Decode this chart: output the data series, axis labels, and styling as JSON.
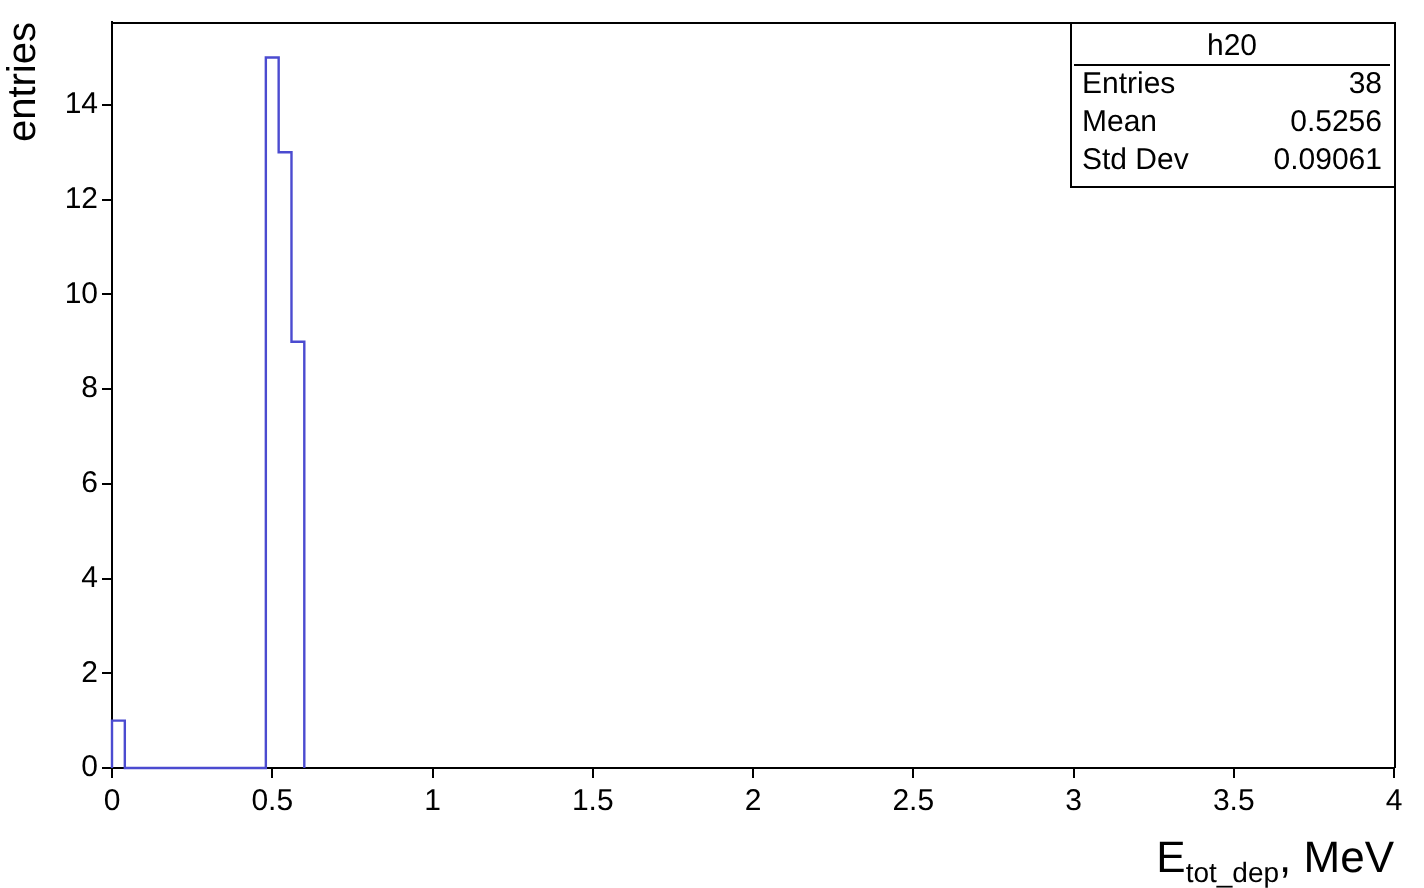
{
  "chart_data": {
    "type": "histogram",
    "xlabel": "E$_{tot_dep}$, MeV",
    "ylabel": "entries",
    "bins": [
      0,
      0.04,
      0.08,
      0.12,
      0.16,
      0.2,
      0.24,
      0.28,
      0.32,
      0.36,
      0.4,
      0.44,
      0.48,
      0.52,
      0.56,
      0.6
    ],
    "values": [
      1,
      0,
      0,
      0,
      0,
      0,
      0,
      0,
      0,
      0,
      0,
      0,
      15,
      13,
      9
    ],
    "color": "#4b4bd0",
    "xlim": [
      0,
      4
    ],
    "xticks": [
      0,
      0.5,
      1,
      1.5,
      2,
      2.5,
      3,
      3.5,
      4
    ],
    "ylim": [
      0,
      15.75
    ],
    "yticks": [
      0,
      2,
      4,
      6,
      8,
      10,
      12,
      14
    ],
    "grid": false,
    "legend": false,
    "annotations": [
      "h20",
      "Entries 38",
      "Mean 0.5256",
      "Std Dev 0.09061"
    ]
  }
}
